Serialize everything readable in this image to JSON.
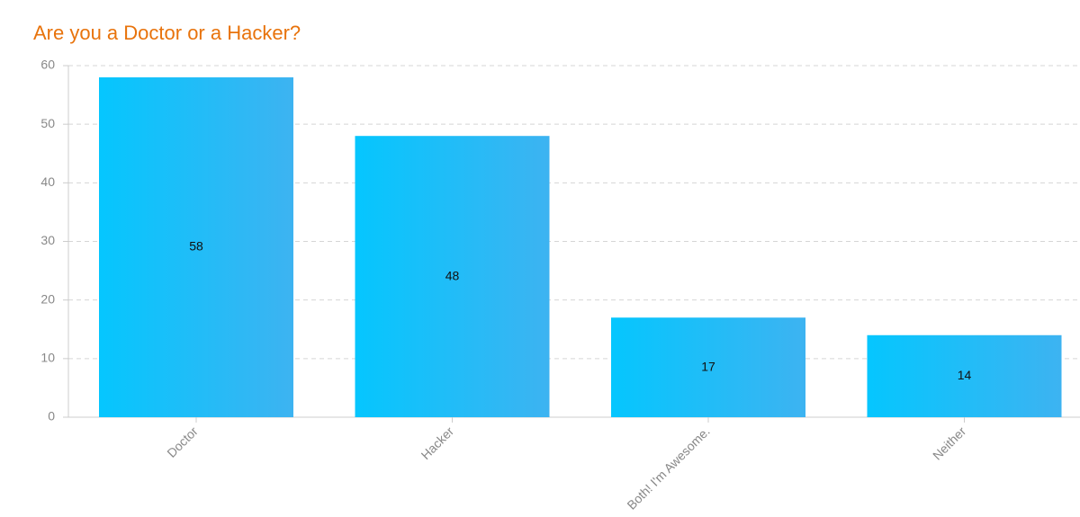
{
  "chart_data": {
    "type": "bar",
    "title": "Are you a Doctor or a Hacker?",
    "categories": [
      "Doctor",
      "Hacker",
      "Both! I'm Awesome.",
      "Neither"
    ],
    "values": [
      58,
      48,
      17,
      14
    ],
    "gradient": [
      "#05c6fe",
      "#3db3f1"
    ],
    "ylim": [
      0,
      60
    ],
    "yticks": [
      0,
      10,
      20,
      30,
      40,
      50,
      60
    ],
    "grid": true
  }
}
